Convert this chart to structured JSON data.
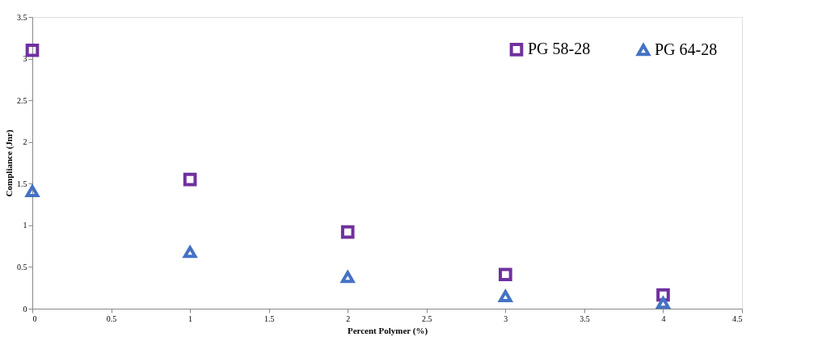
{
  "chart_data": {
    "type": "scatter",
    "xlabel": "Percent Polymer (%)",
    "ylabel": "Compliance (Jnr)",
    "x": [
      0,
      1,
      2,
      3,
      4
    ],
    "series": [
      {
        "name": "PG 58-28",
        "color": "#7030a0",
        "marker": "square",
        "values": [
          3.1,
          1.55,
          0.92,
          0.41,
          0.165
        ]
      },
      {
        "name": "PG 64-28",
        "color": "#4472c4",
        "marker": "triangle",
        "values": [
          1.41,
          0.68,
          0.38,
          0.15,
          0.07
        ]
      }
    ],
    "xlim": [
      0,
      4.5
    ],
    "xticks": [
      0,
      0.5,
      1,
      1.5,
      2,
      2.5,
      3,
      3.5,
      4,
      4.5
    ],
    "ylim": [
      0,
      3.5
    ],
    "yticks": [
      0,
      0.5,
      1,
      1.5,
      2,
      2.5,
      3,
      3.5
    ],
    "grid": false,
    "legend": "top right"
  }
}
